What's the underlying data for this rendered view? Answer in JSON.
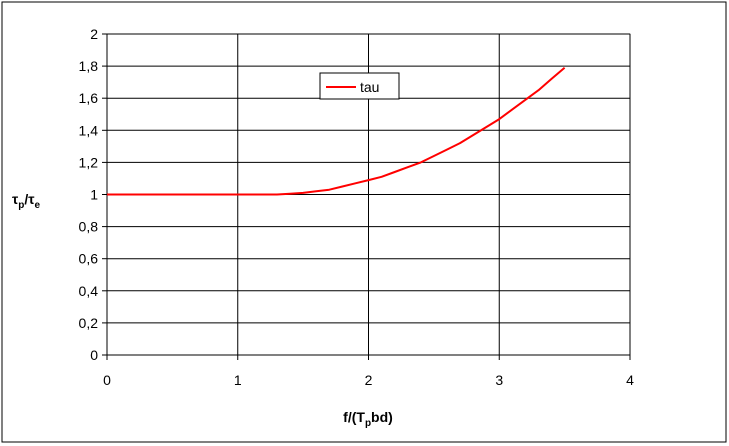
{
  "chart_data": {
    "type": "line",
    "xlabel": {
      "main": "f/(T",
      "sub": "p",
      "tail": "bd)"
    },
    "ylabel": {
      "t1": "τ",
      "s1": "p",
      "sep": "/τ",
      "s2": "e"
    },
    "xlim": [
      0,
      4
    ],
    "ylim": [
      0,
      2
    ],
    "x_ticks": [
      "0",
      "1",
      "2",
      "3",
      "4"
    ],
    "y_ticks": [
      "0",
      "0,2",
      "0,4",
      "0,6",
      "0,8",
      "1",
      "1,2",
      "1,4",
      "1,6",
      "1,8",
      "2"
    ],
    "grid": true,
    "legend_position": "top-center",
    "series": [
      {
        "name": "tau",
        "color": "#ff0000",
        "x": [
          0,
          0.5,
          1.0,
          1.3,
          1.4,
          1.5,
          1.6,
          1.7,
          1.8,
          1.9,
          2.0,
          2.1,
          2.2,
          2.3,
          2.4,
          2.5,
          2.6,
          2.7,
          2.8,
          2.9,
          3.0,
          3.1,
          3.2,
          3.3,
          3.4,
          3.5
        ],
        "y": [
          1.0,
          1.0,
          1.0,
          1.0,
          1.005,
          1.01,
          1.02,
          1.03,
          1.05,
          1.07,
          1.09,
          1.11,
          1.14,
          1.17,
          1.2,
          1.24,
          1.28,
          1.32,
          1.37,
          1.42,
          1.47,
          1.53,
          1.59,
          1.65,
          1.72,
          1.79
        ]
      }
    ]
  }
}
